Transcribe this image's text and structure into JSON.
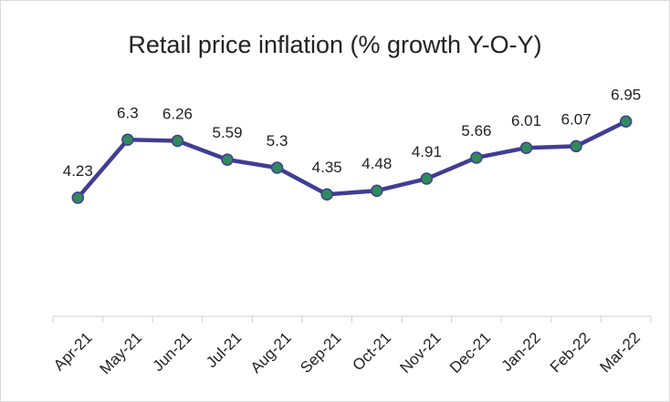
{
  "chart_data": {
    "type": "line",
    "title": "Retail price inflation (% growth Y-O-Y)",
    "categories": [
      "Apr-21",
      "May-21",
      "Jun-21",
      "Jul-21",
      "Aug-21",
      "Sep-21",
      "Oct-21",
      "Nov-21",
      "Dec-21",
      "Jan-22",
      "Feb-22",
      "Mar-22"
    ],
    "values": [
      4.23,
      6.3,
      6.26,
      5.59,
      5.3,
      4.35,
      4.48,
      4.91,
      5.66,
      6.01,
      6.07,
      6.95
    ],
    "color": "#403d94",
    "marker_color": "#2f8a5c",
    "ylim": [
      0,
      8
    ]
  }
}
